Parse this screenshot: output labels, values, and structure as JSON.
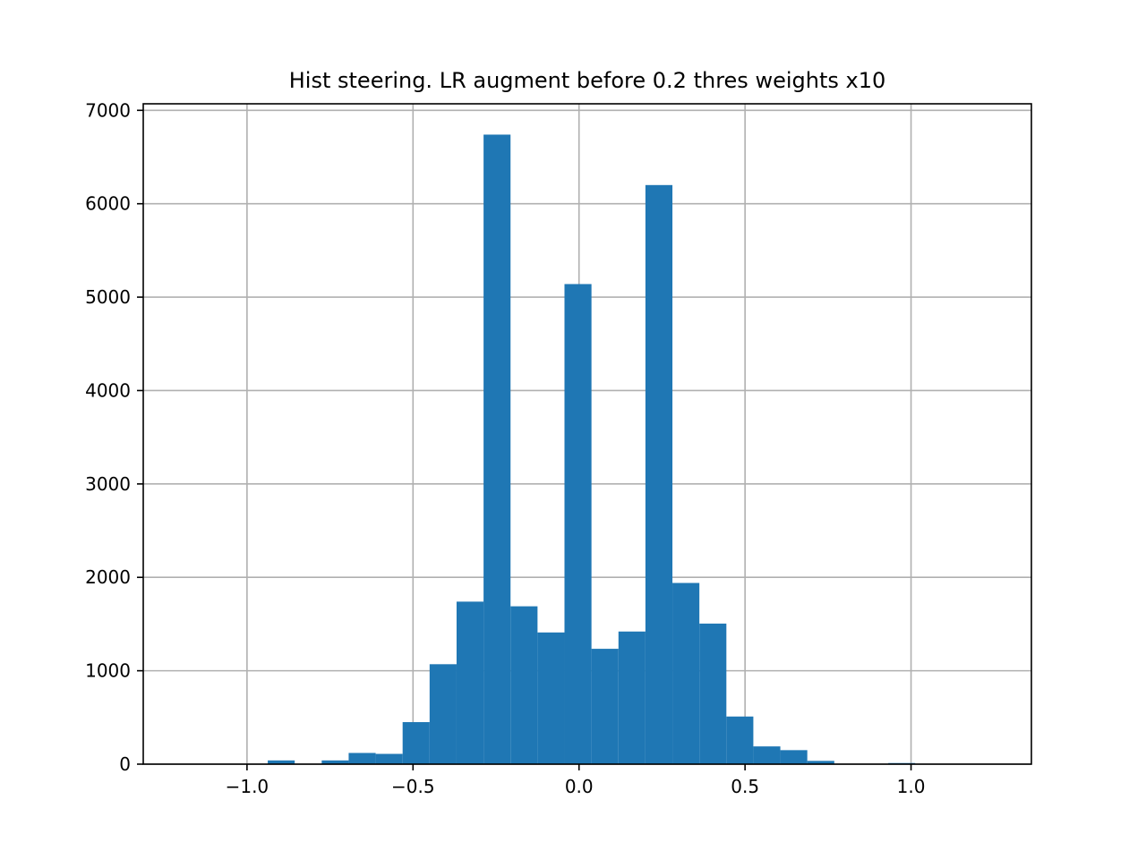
{
  "chart_data": {
    "type": "bar",
    "title": "Hist steering. LR augment before 0.2 thres weights x10",
    "xlabel": "",
    "ylabel": "",
    "xlim": [
      -1.3125,
      1.3625
    ],
    "ylim": [
      0,
      7070
    ],
    "grid": true,
    "bar_color": "#1f77b4",
    "x_ticks": [
      {
        "value": -1.0,
        "label": "−1.0"
      },
      {
        "value": -0.5,
        "label": "−0.5"
      },
      {
        "value": 0.0,
        "label": "0.0"
      },
      {
        "value": 0.5,
        "label": "0.5"
      },
      {
        "value": 1.0,
        "label": "1.0"
      }
    ],
    "y_ticks": [
      {
        "value": 0,
        "label": "0"
      },
      {
        "value": 1000,
        "label": "1000"
      },
      {
        "value": 2000,
        "label": "2000"
      },
      {
        "value": 3000,
        "label": "3000"
      },
      {
        "value": 4000,
        "label": "4000"
      },
      {
        "value": 5000,
        "label": "5000"
      },
      {
        "value": 6000,
        "label": "6000"
      },
      {
        "value": 7000,
        "label": "7000"
      }
    ],
    "bins": [
      {
        "x0": -0.9375,
        "x1": -0.8563,
        "count": 40
      },
      {
        "x0": -0.8563,
        "x1": -0.775,
        "count": 0
      },
      {
        "x0": -0.775,
        "x1": -0.6938,
        "count": 40
      },
      {
        "x0": -0.6938,
        "x1": -0.6125,
        "count": 120
      },
      {
        "x0": -0.6125,
        "x1": -0.5313,
        "count": 110
      },
      {
        "x0": -0.5313,
        "x1": -0.45,
        "count": 450
      },
      {
        "x0": -0.45,
        "x1": -0.3688,
        "count": 1070
      },
      {
        "x0": -0.3688,
        "x1": -0.2875,
        "count": 1740
      },
      {
        "x0": -0.2875,
        "x1": -0.2063,
        "count": 6740
      },
      {
        "x0": -0.2063,
        "x1": -0.125,
        "count": 1690
      },
      {
        "x0": -0.125,
        "x1": -0.0438,
        "count": 1410
      },
      {
        "x0": -0.0438,
        "x1": 0.0375,
        "count": 5140
      },
      {
        "x0": 0.0375,
        "x1": 0.1188,
        "count": 1235
      },
      {
        "x0": 0.1188,
        "x1": 0.2,
        "count": 1420
      },
      {
        "x0": 0.2,
        "x1": 0.2813,
        "count": 6200
      },
      {
        "x0": 0.2813,
        "x1": 0.3625,
        "count": 1940
      },
      {
        "x0": 0.3625,
        "x1": 0.4438,
        "count": 1505
      },
      {
        "x0": 0.4438,
        "x1": 0.525,
        "count": 510
      },
      {
        "x0": 0.525,
        "x1": 0.6063,
        "count": 190
      },
      {
        "x0": 0.6063,
        "x1": 0.6875,
        "count": 150
      },
      {
        "x0": 0.6875,
        "x1": 0.7688,
        "count": 35
      },
      {
        "x0": 0.7688,
        "x1": 0.85,
        "count": 0
      },
      {
        "x0": 0.85,
        "x1": 0.9313,
        "count": 0
      },
      {
        "x0": 0.9313,
        "x1": 1.0125,
        "count": 12
      }
    ]
  }
}
